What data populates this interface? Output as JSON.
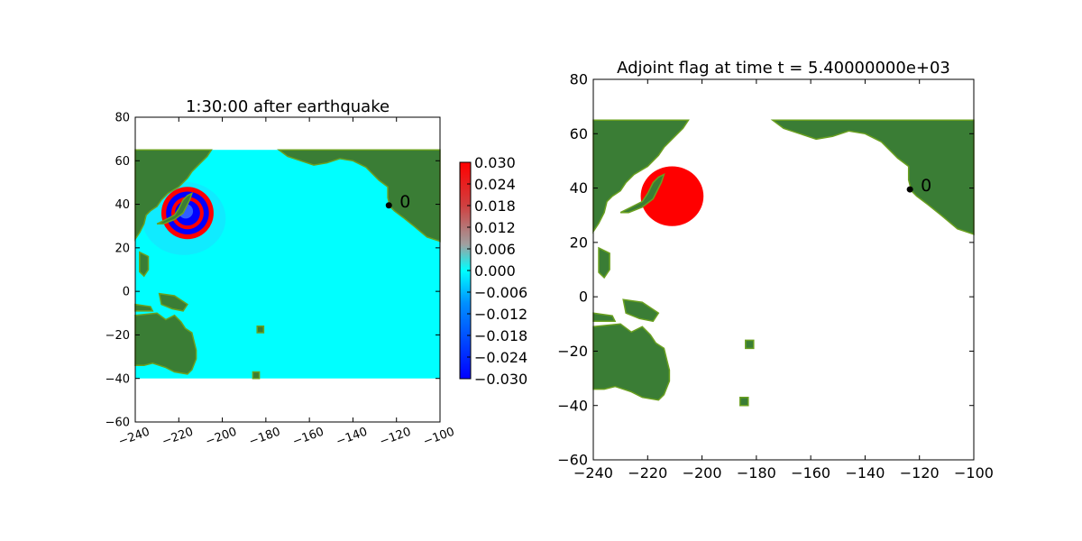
{
  "colors": {
    "land": "#3a7d35",
    "land_edge": "#6aa020",
    "ocean_zero": "#00ffff",
    "wave_high": "#ff0000",
    "wave_low": "#0000ff",
    "adjoint_flag": "#ff0000",
    "gauge": "#000000"
  },
  "chart_data": [
    {
      "type": "heatmap",
      "title": "1:30:00 after earthquake",
      "xlabel": "",
      "ylabel": "",
      "xlim": [
        -240,
        -100
      ],
      "ylim": [
        -60,
        80
      ],
      "xticks": [
        "−240",
        "−220",
        "−200",
        "−180",
        "−160",
        "−140",
        "−120",
        "−100"
      ],
      "yticks": [
        "80",
        "60",
        "40",
        "20",
        "0",
        "−20",
        "−40",
        "−60"
      ],
      "domain_extent": {
        "lon": [
          -240,
          -100
        ],
        "lat": [
          -40,
          65
        ]
      },
      "colorbar": {
        "colormap": "bwr-like (blue–cyan–red)",
        "range": [
          -0.03,
          0.03
        ],
        "ticks": [
          "0.030",
          "0.024",
          "0.018",
          "0.012",
          "0.006",
          "0.000",
          "−0.006",
          "−0.012",
          "−0.018",
          "−0.024",
          "−0.030"
        ]
      },
      "wave_front": {
        "center": [
          -216,
          36
        ],
        "outer_radius_deg": 12
      },
      "gauge": {
        "label": "0",
        "lon": -123.5,
        "lat": 39.5
      }
    },
    {
      "type": "heatmap",
      "title": "Adjoint flag at time t = 5.40000000e+03",
      "xlabel": "",
      "ylabel": "",
      "xlim": [
        -240,
        -100
      ],
      "ylim": [
        -60,
        80
      ],
      "xticks": [
        "−240",
        "−220",
        "−200",
        "−180",
        "−160",
        "−140",
        "−120",
        "−100"
      ],
      "yticks": [
        "80",
        "60",
        "40",
        "20",
        "0",
        "−20",
        "−40",
        "−60"
      ],
      "domain_extent": {
        "lon": [
          -240,
          -100
        ],
        "lat": [
          -40,
          65
        ]
      },
      "flagged_region": {
        "center": [
          -211,
          37
        ],
        "radius_deg": 11
      },
      "gauge": {
        "label": "0",
        "lon": -123.5,
        "lat": 39.5
      }
    }
  ]
}
